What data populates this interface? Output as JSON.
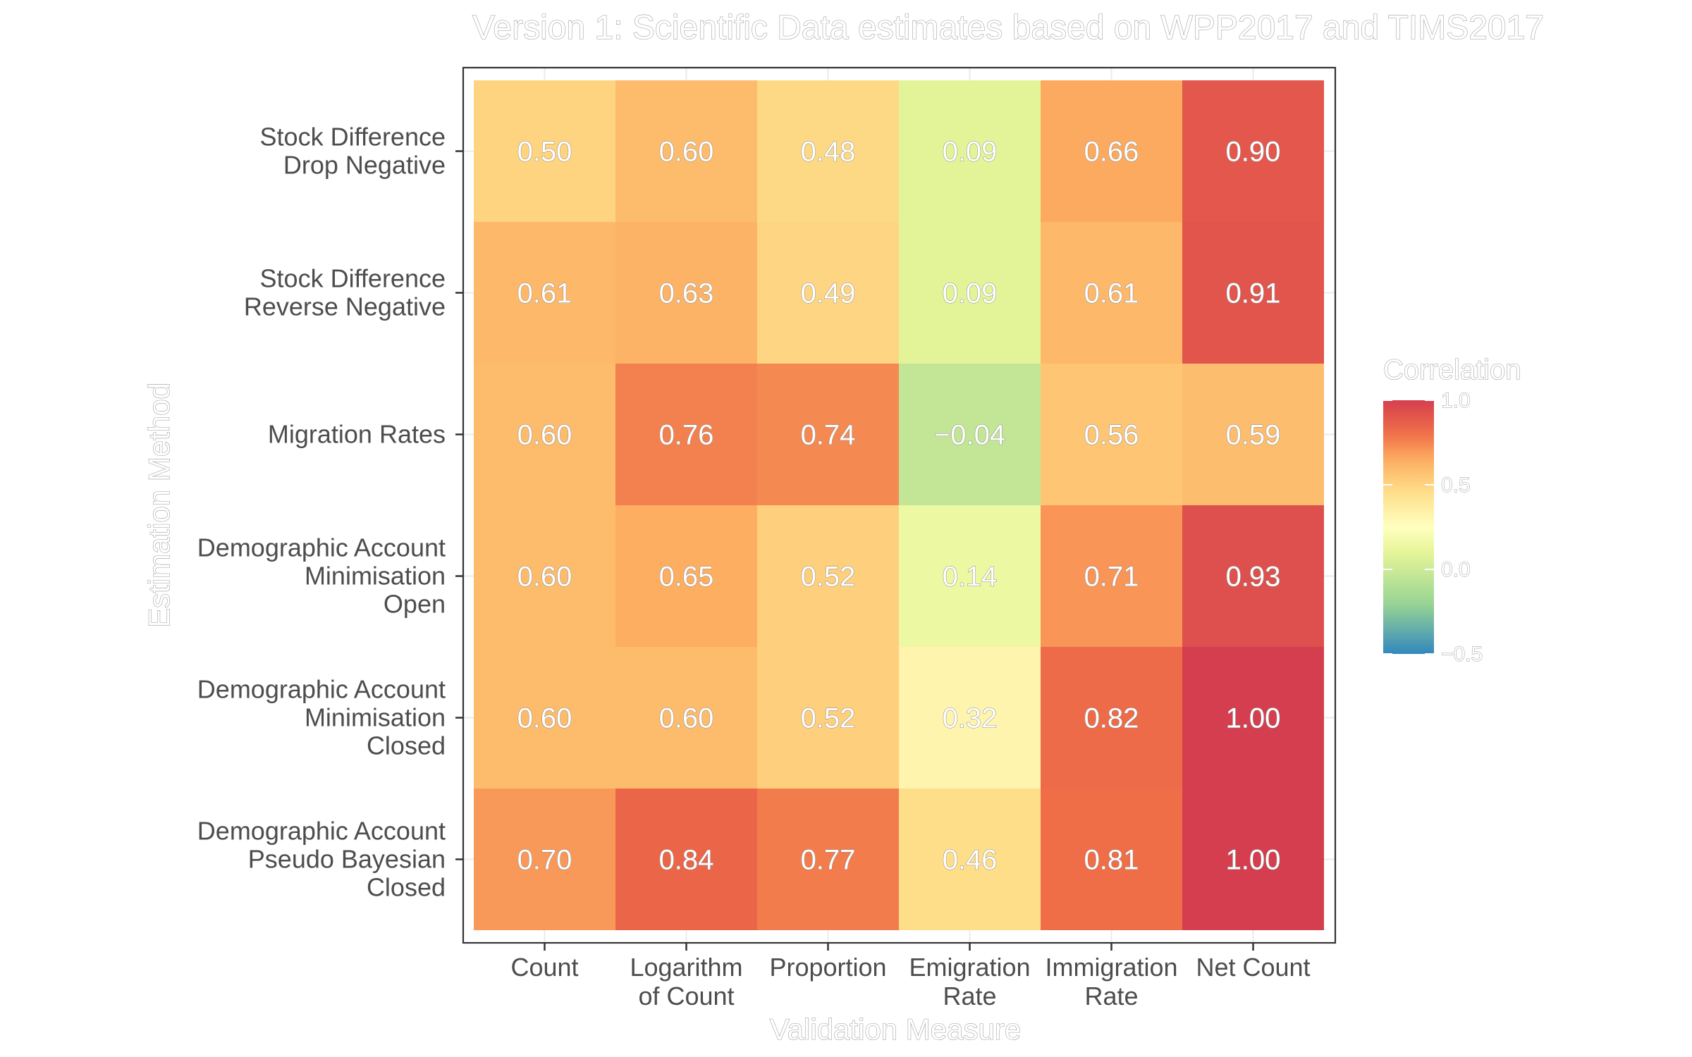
{
  "chart_data": {
    "type": "heatmap",
    "title": "Version 1: Scientific Data estimates based on WPP2017 and TIMS2017",
    "xlabel": "Validation Measure",
    "ylabel": "Estimation Method",
    "x_categories": [
      [
        "Count"
      ],
      [
        "Logarithm",
        "of Count"
      ],
      [
        "Proportion"
      ],
      [
        "Emigration",
        "Rate"
      ],
      [
        "Immigration",
        "Rate"
      ],
      [
        "Net Count"
      ]
    ],
    "y_categories": [
      [
        "Stock Difference",
        "Drop Negative"
      ],
      [
        "Stock Difference",
        "Reverse Negative"
      ],
      [
        "Migration Rates"
      ],
      [
        "Demographic Account",
        "Minimisation",
        "Open"
      ],
      [
        "Demographic Account",
        "Minimisation",
        "Closed"
      ],
      [
        "Demographic Account",
        "Pseudo Bayesian",
        "Closed"
      ]
    ],
    "values": [
      [
        0.5,
        0.6,
        0.48,
        0.09,
        0.66,
        0.9
      ],
      [
        0.61,
        0.63,
        0.49,
        0.09,
        0.61,
        0.91
      ],
      [
        0.6,
        0.76,
        0.74,
        -0.04,
        0.56,
        0.59
      ],
      [
        0.6,
        0.65,
        0.52,
        0.14,
        0.71,
        0.93
      ],
      [
        0.6,
        0.6,
        0.52,
        0.32,
        0.82,
        1.0
      ],
      [
        0.7,
        0.84,
        0.77,
        0.46,
        0.81,
        1.0
      ]
    ],
    "labels": [
      [
        "0.50",
        "0.60",
        "0.48",
        "0.09",
        "0.66",
        "0.90"
      ],
      [
        "0.61",
        "0.63",
        "0.49",
        "0.09",
        "0.61",
        "0.91"
      ],
      [
        "0.60",
        "0.76",
        "0.74",
        "−0.04",
        "0.56",
        "0.59"
      ],
      [
        "0.60",
        "0.65",
        "0.52",
        "0.14",
        "0.71",
        "0.93"
      ],
      [
        "0.60",
        "0.60",
        "0.52",
        "0.32",
        "0.82",
        "1.00"
      ],
      [
        "0.70",
        "0.84",
        "0.77",
        "0.46",
        "0.81",
        "1.00"
      ]
    ],
    "legend": {
      "title": "Correlation",
      "range": [
        -0.5,
        1.0
      ],
      "ticks": [
        1.0,
        0.5,
        0.0,
        -0.5
      ],
      "tick_labels": [
        "1.0",
        "0.5",
        "0.0",
        "−0.5"
      ],
      "placement": "right"
    },
    "color_scale": [
      {
        "v": -0.5,
        "c": "#3288bd"
      },
      {
        "v": -0.2,
        "c": "#99d594"
      },
      {
        "v": 0.1,
        "c": "#e6f598"
      },
      {
        "v": 0.25,
        "c": "#ffffbf"
      },
      {
        "v": 0.45,
        "c": "#fee08b"
      },
      {
        "v": 0.65,
        "c": "#fdae61"
      },
      {
        "v": 0.8,
        "c": "#f07048"
      },
      {
        "v": 1.0,
        "c": "#d53e4f"
      }
    ],
    "grid": true
  }
}
